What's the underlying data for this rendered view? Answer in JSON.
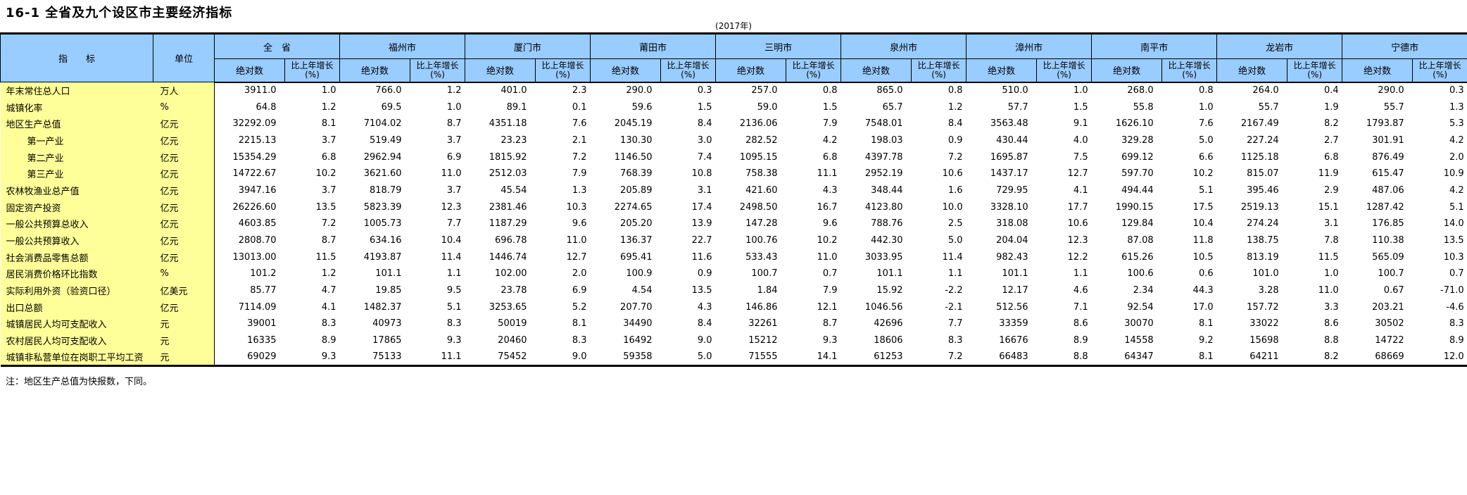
{
  "title": "16-1 全省及九个设区市主要经济指标",
  "year_label": "(2017年)",
  "note": "注：地区生产总值为快报数，下同。",
  "colors": {
    "header_bg": "#99CCFF",
    "label_bg": "#FFFF99",
    "border": "#000000"
  },
  "table": {
    "indicator_header": "指　　标",
    "unit_header": "单位",
    "abs_header": "绝对数",
    "growth_header_line1": "比上年增长",
    "growth_header_line2": "(%)",
    "regions": [
      "全　省",
      "福州市",
      "厦门市",
      "莆田市",
      "三明市",
      "泉州市",
      "漳州市",
      "南平市",
      "龙岩市",
      "宁德市"
    ],
    "rows": [
      {
        "label": "年末常住总人口",
        "indent": false,
        "unit": "万人",
        "values": [
          "3911.0",
          "1.0",
          "766.0",
          "1.2",
          "401.0",
          "2.3",
          "290.0",
          "0.3",
          "257.0",
          "0.8",
          "865.0",
          "0.8",
          "510.0",
          "1.0",
          "268.0",
          "0.8",
          "264.0",
          "0.4",
          "290.0",
          "0.3"
        ]
      },
      {
        "label": "城镇化率",
        "indent": false,
        "unit": "%",
        "values": [
          "64.8",
          "1.2",
          "69.5",
          "1.0",
          "89.1",
          "0.1",
          "59.6",
          "1.5",
          "59.0",
          "1.5",
          "65.7",
          "1.2",
          "57.7",
          "1.5",
          "55.8",
          "1.0",
          "55.7",
          "1.9",
          "55.7",
          "1.3"
        ]
      },
      {
        "label": "地区生产总值",
        "indent": false,
        "unit": "亿元",
        "values": [
          "32292.09",
          "8.1",
          "7104.02",
          "8.7",
          "4351.18",
          "7.6",
          "2045.19",
          "8.4",
          "2136.06",
          "7.9",
          "7548.01",
          "8.4",
          "3563.48",
          "9.1",
          "1626.10",
          "7.6",
          "2167.49",
          "8.2",
          "1793.87",
          "5.3"
        ]
      },
      {
        "label": "第一产业",
        "indent": true,
        "unit": "亿元",
        "values": [
          "2215.13",
          "3.7",
          "519.49",
          "3.7",
          "23.23",
          "2.1",
          "130.30",
          "3.0",
          "282.52",
          "4.2",
          "198.03",
          "0.9",
          "430.44",
          "4.0",
          "329.28",
          "5.0",
          "227.24",
          "2.7",
          "301.91",
          "4.2"
        ]
      },
      {
        "label": "第二产业",
        "indent": true,
        "unit": "亿元",
        "values": [
          "15354.29",
          "6.8",
          "2962.94",
          "6.9",
          "1815.92",
          "7.2",
          "1146.50",
          "7.4",
          "1095.15",
          "6.8",
          "4397.78",
          "7.2",
          "1695.87",
          "7.5",
          "699.12",
          "6.6",
          "1125.18",
          "6.8",
          "876.49",
          "2.0"
        ]
      },
      {
        "label": "第三产业",
        "indent": true,
        "unit": "亿元",
        "values": [
          "14722.67",
          "10.2",
          "3621.60",
          "11.0",
          "2512.03",
          "7.9",
          "768.39",
          "10.8",
          "758.38",
          "11.1",
          "2952.19",
          "10.6",
          "1437.17",
          "12.7",
          "597.70",
          "10.2",
          "815.07",
          "11.9",
          "615.47",
          "10.9"
        ]
      },
      {
        "label": "农林牧渔业总产值",
        "indent": false,
        "unit": "亿元",
        "values": [
          "3947.16",
          "3.7",
          "818.79",
          "3.7",
          "45.54",
          "1.3",
          "205.89",
          "3.1",
          "421.60",
          "4.3",
          "348.44",
          "1.6",
          "729.95",
          "4.1",
          "494.44",
          "5.1",
          "395.46",
          "2.9",
          "487.06",
          "4.2"
        ]
      },
      {
        "label": "固定资产投资",
        "indent": false,
        "unit": "亿元",
        "values": [
          "26226.60",
          "13.5",
          "5823.39",
          "12.3",
          "2381.46",
          "10.3",
          "2274.65",
          "17.4",
          "2498.50",
          "16.7",
          "4123.80",
          "10.0",
          "3328.10",
          "17.7",
          "1990.15",
          "17.5",
          "2519.13",
          "15.1",
          "1287.42",
          "5.1"
        ]
      },
      {
        "label": "一般公共预算总收入",
        "indent": false,
        "unit": "亿元",
        "values": [
          "4603.85",
          "7.2",
          "1005.73",
          "7.7",
          "1187.29",
          "9.6",
          "205.20",
          "13.9",
          "147.28",
          "9.6",
          "788.76",
          "2.5",
          "318.08",
          "10.6",
          "129.84",
          "10.4",
          "274.24",
          "3.1",
          "176.85",
          "14.0"
        ]
      },
      {
        "label": "一般公共预算收入",
        "indent": false,
        "unit": "亿元",
        "values": [
          "2808.70",
          "8.7",
          "634.16",
          "10.4",
          "696.78",
          "11.0",
          "136.37",
          "22.7",
          "100.76",
          "10.2",
          "442.30",
          "5.0",
          "204.04",
          "12.3",
          "87.08",
          "11.8",
          "138.75",
          "7.8",
          "110.38",
          "13.5"
        ]
      },
      {
        "label": "社会消费品零售总额",
        "indent": false,
        "unit": "亿元",
        "values": [
          "13013.00",
          "11.5",
          "4193.87",
          "11.4",
          "1446.74",
          "12.7",
          "695.41",
          "11.6",
          "533.43",
          "11.0",
          "3033.95",
          "11.4",
          "982.43",
          "12.2",
          "615.26",
          "10.5",
          "813.19",
          "11.5",
          "565.09",
          "10.3"
        ]
      },
      {
        "label": "居民消费价格环比指数",
        "indent": false,
        "unit": "%",
        "values": [
          "101.2",
          "1.2",
          "101.1",
          "1.1",
          "102.00",
          "2.0",
          "100.9",
          "0.9",
          "100.7",
          "0.7",
          "101.1",
          "1.1",
          "101.1",
          "1.1",
          "100.6",
          "0.6",
          "101.0",
          "1.0",
          "100.7",
          "0.7"
        ]
      },
      {
        "label": "实际利用外资（验资口径）",
        "indent": false,
        "unit": "亿美元",
        "values": [
          "85.77",
          "4.7",
          "19.85",
          "9.5",
          "23.78",
          "6.9",
          "4.54",
          "13.5",
          "1.84",
          "7.9",
          "15.92",
          "-2.2",
          "12.17",
          "4.6",
          "2.34",
          "44.3",
          "3.28",
          "11.0",
          "0.67",
          "-71.0"
        ]
      },
      {
        "label": "出口总额",
        "indent": false,
        "unit": "亿元",
        "values": [
          "7114.09",
          "4.1",
          "1482.37",
          "5.1",
          "3253.65",
          "5.2",
          "207.70",
          "4.3",
          "146.86",
          "12.1",
          "1046.56",
          "-2.1",
          "512.56",
          "7.1",
          "92.54",
          "17.0",
          "157.72",
          "3.3",
          "203.21",
          "-4.6"
        ]
      },
      {
        "label": "城镇居民人均可支配收入",
        "indent": false,
        "unit": "元",
        "values": [
          "39001",
          "8.3",
          "40973",
          "8.3",
          "50019",
          "8.1",
          "34490",
          "8.4",
          "32261",
          "8.7",
          "42696",
          "7.7",
          "33359",
          "8.6",
          "30070",
          "8.1",
          "33022",
          "8.6",
          "30502",
          "8.3"
        ]
      },
      {
        "label": "农村居民人均可支配收入",
        "indent": false,
        "unit": "元",
        "values": [
          "16335",
          "8.9",
          "17865",
          "9.3",
          "20460",
          "8.3",
          "16492",
          "9.0",
          "15212",
          "9.3",
          "18606",
          "8.3",
          "16676",
          "8.9",
          "14558",
          "9.2",
          "15698",
          "8.8",
          "14722",
          "8.9"
        ]
      },
      {
        "label": "城镇非私营单位在岗职工平均工资",
        "indent": false,
        "unit": "元",
        "values": [
          "69029",
          "9.3",
          "75133",
          "11.1",
          "75452",
          "9.0",
          "59358",
          "5.0",
          "71555",
          "14.1",
          "61253",
          "7.2",
          "66483",
          "8.8",
          "64347",
          "8.1",
          "64211",
          "8.2",
          "68669",
          "12.0"
        ]
      }
    ]
  }
}
